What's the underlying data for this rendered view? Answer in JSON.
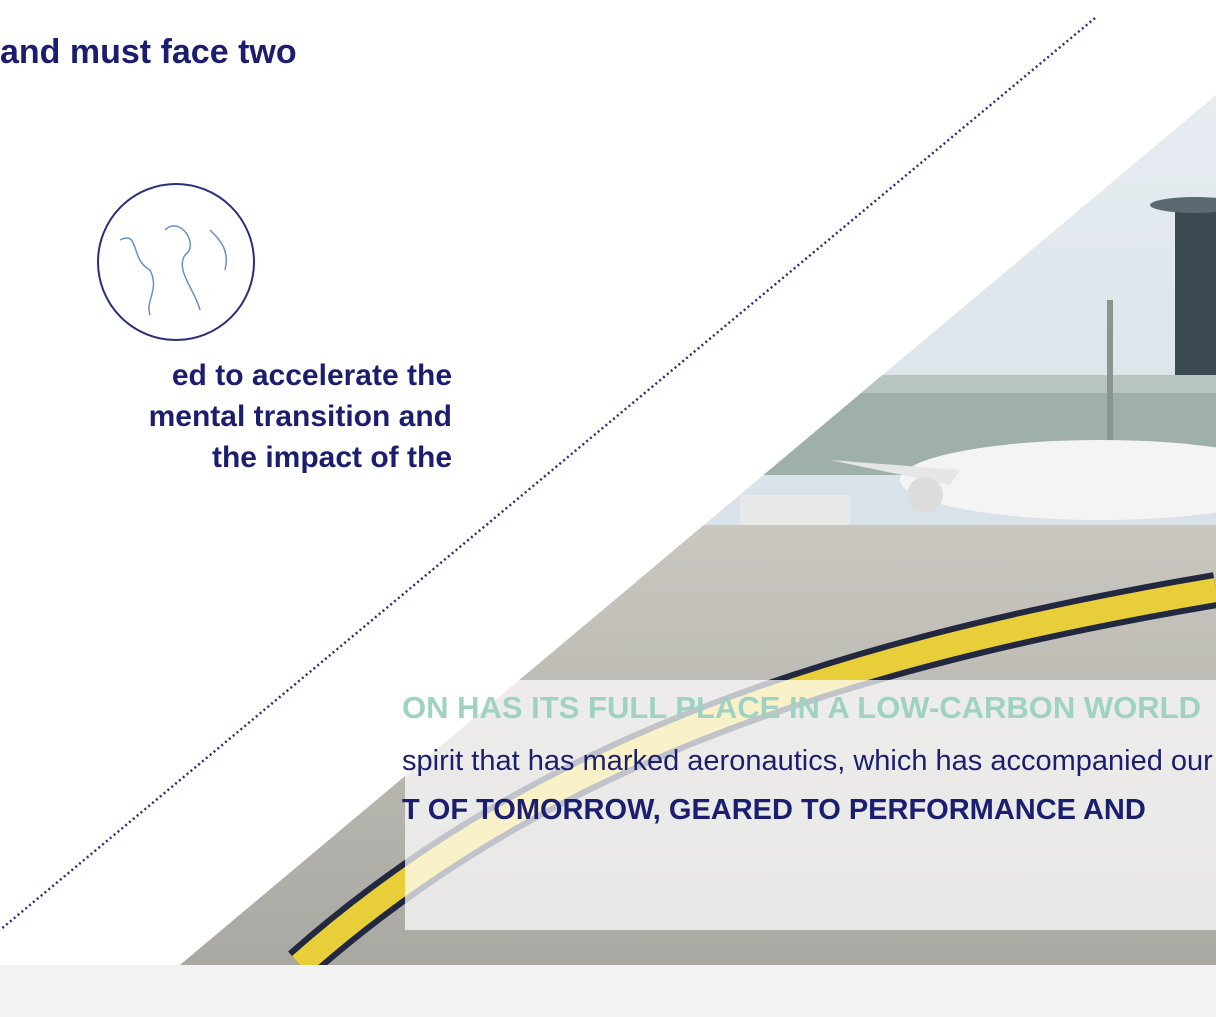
{
  "heading": "and must face two",
  "challenge": {
    "lines": [
      "ed to accelerate the",
      "mental transition and",
      "the impact of the"
    ]
  },
  "banner": {
    "title": "ON HAS ITS FULL PLACE IN A LOW-CARBON WORLD",
    "text": "spirit that has marked aeronautics, which has accompanied our",
    "emphasis": "T OF TOMORROW, GEARED TO PERFORMANCE AND"
  }
}
